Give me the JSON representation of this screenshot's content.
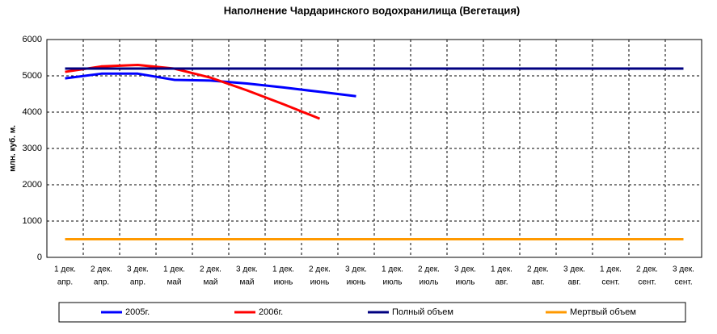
{
  "chart_data": {
    "type": "line",
    "title": "Наполнение Чардаринского водохранилища (Вегетация)",
    "y_label": "млн. куб. м.",
    "categories": [
      [
        "1 дек.",
        "апр."
      ],
      [
        "2 дек.",
        "апр."
      ],
      [
        "3 дек.",
        "апр."
      ],
      [
        "1 дек.",
        "май"
      ],
      [
        "2 дек.",
        "май"
      ],
      [
        "3 дек.",
        "май"
      ],
      [
        "1 дек.",
        "июнь"
      ],
      [
        "2 дек.",
        "июнь"
      ],
      [
        "3 дек.",
        "июнь"
      ],
      [
        "1 дек.",
        "июль"
      ],
      [
        "2 дек.",
        "июль"
      ],
      [
        "3 дек.",
        "июль"
      ],
      [
        "1 дек.",
        "авг."
      ],
      [
        "2 дек.",
        "авг."
      ],
      [
        "3 дек.",
        "авг."
      ],
      [
        "1 дек.",
        "сент."
      ],
      [
        "2 дек.",
        "сент."
      ],
      [
        "3 дек.",
        "сент."
      ]
    ],
    "series": [
      {
        "name": "2005г.",
        "color": "#0000ff",
        "values": [
          4930,
          5060,
          5060,
          4890,
          4870,
          4790,
          4680,
          4560,
          4440,
          null,
          null,
          null,
          null,
          null,
          null,
          null,
          null,
          null
        ]
      },
      {
        "name": "2006г.",
        "color": "#ff0000",
        "values": [
          5110,
          5260,
          5300,
          5200,
          4950,
          4600,
          4220,
          3820,
          null,
          null,
          null,
          null,
          null,
          null,
          null,
          null,
          null,
          null
        ]
      },
      {
        "name": "Полный объем",
        "color": "#000080",
        "values": [
          5200,
          5200,
          5200,
          5200,
          5200,
          5200,
          5200,
          5200,
          5200,
          5200,
          5200,
          5200,
          5200,
          5200,
          5200,
          5200,
          5200,
          5200
        ]
      },
      {
        "name": "Мертвый объем",
        "color": "#ff9900",
        "values": [
          500,
          500,
          500,
          500,
          500,
          500,
          500,
          500,
          500,
          500,
          500,
          500,
          500,
          500,
          500,
          500,
          500,
          500
        ]
      }
    ],
    "ylim": [
      0,
      6000
    ],
    "yticks": [
      0,
      1000,
      2000,
      3000,
      4000,
      5000,
      6000
    ],
    "grid": true,
    "legend": "bottom"
  }
}
